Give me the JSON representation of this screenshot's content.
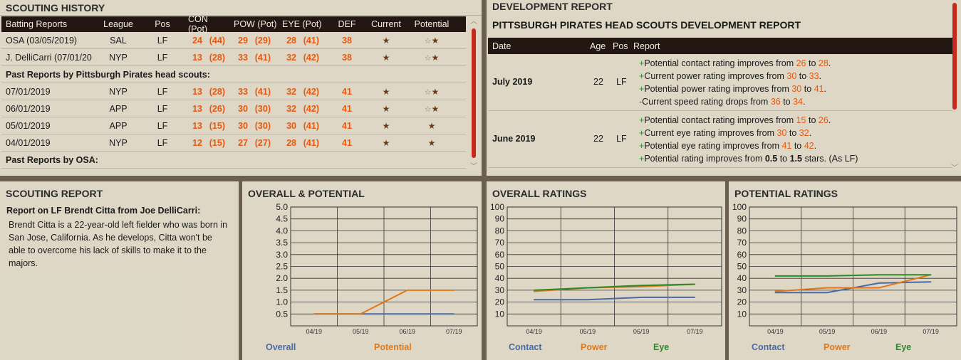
{
  "history": {
    "title": "SCOUTING HISTORY",
    "headers": {
      "name": "Batting Reports",
      "league": "League",
      "pos": "Pos",
      "con": "CON (Pot)",
      "pow": "POW (Pot)",
      "eye": "EYE (Pot)",
      "def": "DEF",
      "cur": "Current",
      "pot": "Potential"
    },
    "rows": [
      {
        "type": "data",
        "name": "OSA (03/05/2019)",
        "league": "SAL",
        "pos": "LF",
        "con": "24",
        "con_p": "(44)",
        "pow": "29",
        "pow_p": "(29)",
        "eye": "28",
        "eye_p": "(41)",
        "def": "38",
        "cur_stars": 1,
        "pot_stars": 2
      },
      {
        "type": "data",
        "name": "J. DelliCarri (07/01/20",
        "league": "NYP",
        "pos": "LF",
        "con": "13",
        "con_p": "(28)",
        "pow": "33",
        "pow_p": "(41)",
        "eye": "32",
        "eye_p": "(42)",
        "def": "38",
        "cur_stars": 1,
        "pot_stars": 2
      },
      {
        "type": "section",
        "name": "Past Reports by Pittsburgh Pirates head scouts:"
      },
      {
        "type": "data",
        "name": "07/01/2019",
        "league": "NYP",
        "pos": "LF",
        "con": "13",
        "con_p": "(28)",
        "pow": "33",
        "pow_p": "(41)",
        "eye": "32",
        "eye_p": "(42)",
        "def": "41",
        "cur_stars": 1,
        "pot_stars": 2
      },
      {
        "type": "data",
        "name": "06/01/2019",
        "league": "APP",
        "pos": "LF",
        "con": "13",
        "con_p": "(26)",
        "pow": "30",
        "pow_p": "(30)",
        "eye": "32",
        "eye_p": "(42)",
        "def": "41",
        "cur_stars": 1,
        "pot_stars": 2
      },
      {
        "type": "data",
        "name": "05/01/2019",
        "league": "APP",
        "pos": "LF",
        "con": "13",
        "con_p": "(15)",
        "pow": "30",
        "pow_p": "(30)",
        "eye": "30",
        "eye_p": "(41)",
        "def": "41",
        "cur_stars": 1,
        "pot_stars": 1
      },
      {
        "type": "data",
        "name": "04/01/2019",
        "league": "NYP",
        "pos": "LF",
        "con": "12",
        "con_p": "(15)",
        "pow": "27",
        "pow_p": "(27)",
        "eye": "28",
        "eye_p": "(41)",
        "def": "41",
        "cur_stars": 1,
        "pot_stars": 1
      },
      {
        "type": "section",
        "name": "Past Reports by OSA:"
      }
    ]
  },
  "dev": {
    "title": "DEVELOPMENT REPORT",
    "subtitle": "PITTSBURGH PIRATES HEAD SCOUTS DEVELOPMENT REPORT",
    "headers": {
      "date": "Date",
      "age": "Age",
      "pos": "Pos",
      "report": "Report"
    },
    "entries": [
      {
        "date": "July 2019",
        "age": "22",
        "pos": "LF",
        "lines": [
          {
            "sign": "+",
            "pre": "Potential contact rating improves from ",
            "a": "26",
            "mid": " to ",
            "b": "28",
            "post": "."
          },
          {
            "sign": "+",
            "pre": "Current power rating improves from ",
            "a": "30",
            "mid": " to ",
            "b": "33",
            "post": "."
          },
          {
            "sign": "+",
            "pre": "Potential power rating improves from ",
            "a": "30",
            "mid": " to ",
            "b": "41",
            "post": "."
          },
          {
            "sign": "-",
            "pre": "Current speed rating drops from ",
            "a": "36",
            "mid": " to ",
            "b": "34",
            "post": "."
          }
        ]
      },
      {
        "date": "June 2019",
        "age": "22",
        "pos": "LF",
        "lines": [
          {
            "sign": "+",
            "pre": "Potential contact rating improves from ",
            "a": "15",
            "mid": " to ",
            "b": "26",
            "post": "."
          },
          {
            "sign": "+",
            "pre": "Current eye rating improves from ",
            "a": "30",
            "mid": " to ",
            "b": "32",
            "post": "."
          },
          {
            "sign": "+",
            "pre": "Potential eye rating improves from ",
            "a": "41",
            "mid": " to ",
            "b": "42",
            "post": "."
          },
          {
            "sign": "+",
            "pre": "Potential rating improves from ",
            "a": "0.5",
            "mid": " to ",
            "b": "1.5",
            "post": " stars. (As LF)",
            "bold": true
          }
        ]
      }
    ]
  },
  "scouting": {
    "title": "SCOUTING REPORT",
    "by": "Report on LF Brendt Citta from Joe DelliCarri:",
    "text": "Brendt Citta is a 22-year-old left fielder who was born in San Jose, California. As he develops, Citta won't be able to overcome his lack of skills to make it to the majors."
  },
  "colors": {
    "blue": "#4a6aa8",
    "orange": "#e07818",
    "green": "#2a8a2a",
    "accent": "#e35a10"
  },
  "chart_data": [
    {
      "type": "line",
      "title": "OVERALL & POTENTIAL",
      "categories": [
        "04/19",
        "05/19",
        "06/19",
        "07/19"
      ],
      "ylim": [
        0,
        5
      ],
      "yticks": [
        "5.0",
        "4.5",
        "4.0",
        "3.5",
        "3.0",
        "2.5",
        "2.0",
        "1.5",
        "1.0",
        "0.5"
      ],
      "series": [
        {
          "name": "Overall",
          "color": "#4a6aa8",
          "values": [
            0.5,
            0.5,
            0.5,
            0.5
          ]
        },
        {
          "name": "Potential",
          "color": "#e07818",
          "values": [
            0.5,
            0.5,
            1.5,
            1.5
          ]
        }
      ]
    },
    {
      "type": "line",
      "title": "OVERALL RATINGS",
      "categories": [
        "04/19",
        "05/19",
        "06/19",
        "07/19"
      ],
      "ylim": [
        0,
        100
      ],
      "yticks": [
        "100",
        "90",
        "80",
        "70",
        "60",
        "50",
        "40",
        "30",
        "20",
        "10"
      ],
      "series": [
        {
          "name": "Contact",
          "color": "#4a6aa8",
          "values": [
            22,
            22,
            24,
            24
          ]
        },
        {
          "name": "Power",
          "color": "#e07818",
          "values": [
            29,
            32,
            33,
            35
          ]
        },
        {
          "name": "Eye",
          "color": "#2a8a2a",
          "values": [
            30,
            32,
            34,
            35
          ]
        }
      ]
    },
    {
      "type": "line",
      "title": "POTENTIAL RATINGS",
      "categories": [
        "04/19",
        "05/19",
        "06/19",
        "07/19"
      ],
      "ylim": [
        0,
        100
      ],
      "yticks": [
        "100",
        "90",
        "80",
        "70",
        "60",
        "50",
        "40",
        "30",
        "20",
        "10"
      ],
      "series": [
        {
          "name": "Contact",
          "color": "#4a6aa8",
          "values": [
            28,
            28,
            36,
            37
          ]
        },
        {
          "name": "Power",
          "color": "#e07818",
          "values": [
            29,
            32,
            32,
            43
          ]
        },
        {
          "name": "Eye",
          "color": "#2a8a2a",
          "values": [
            42,
            42,
            43,
            43
          ]
        }
      ]
    }
  ]
}
